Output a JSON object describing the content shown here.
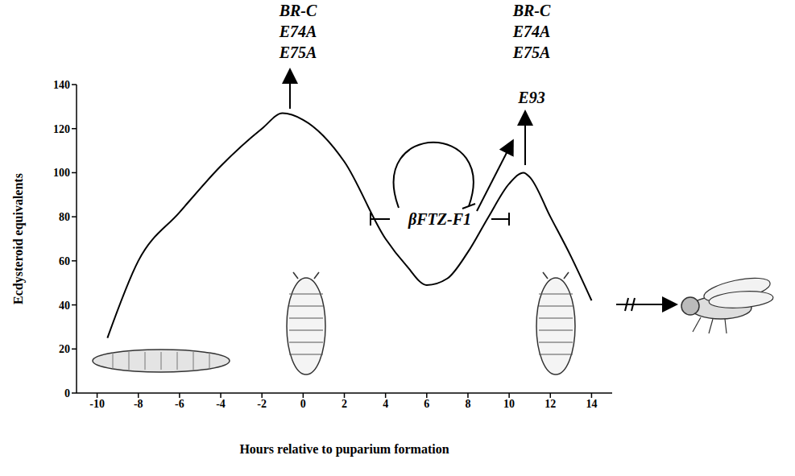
{
  "chart_data": {
    "type": "line",
    "x_label": "Hours relative to puparium formation",
    "y_label": "Ecdysteroid equivalents",
    "x": [
      -9.5,
      -8,
      -6,
      -4,
      -2,
      -1,
      0,
      2,
      4,
      5,
      6,
      7,
      8,
      9,
      10,
      10.7,
      11,
      12,
      13,
      14
    ],
    "values": [
      25,
      60,
      82,
      103,
      120,
      127,
      124,
      105,
      70,
      58,
      49,
      52,
      64,
      80,
      95,
      100,
      98,
      80,
      62,
      42
    ],
    "color": "#000000",
    "xlim": [
      -11,
      15
    ],
    "xticks": [
      -10,
      -8,
      -6,
      -4,
      -2,
      0,
      2,
      4,
      6,
      8,
      10,
      12,
      14
    ],
    "ylim": [
      0,
      140
    ],
    "yticks": [
      0,
      20,
      40,
      60,
      80,
      100,
      120,
      140
    ],
    "grid": false,
    "annotations": [
      {
        "lines": [
          "BR-C",
          "E74A",
          "E75A"
        ]
      },
      {
        "lines": [
          "BR-C",
          "E74A",
          "E75A",
          "E93"
        ]
      },
      {
        "lines": [
          "βFTZ-F1"
        ]
      }
    ]
  }
}
